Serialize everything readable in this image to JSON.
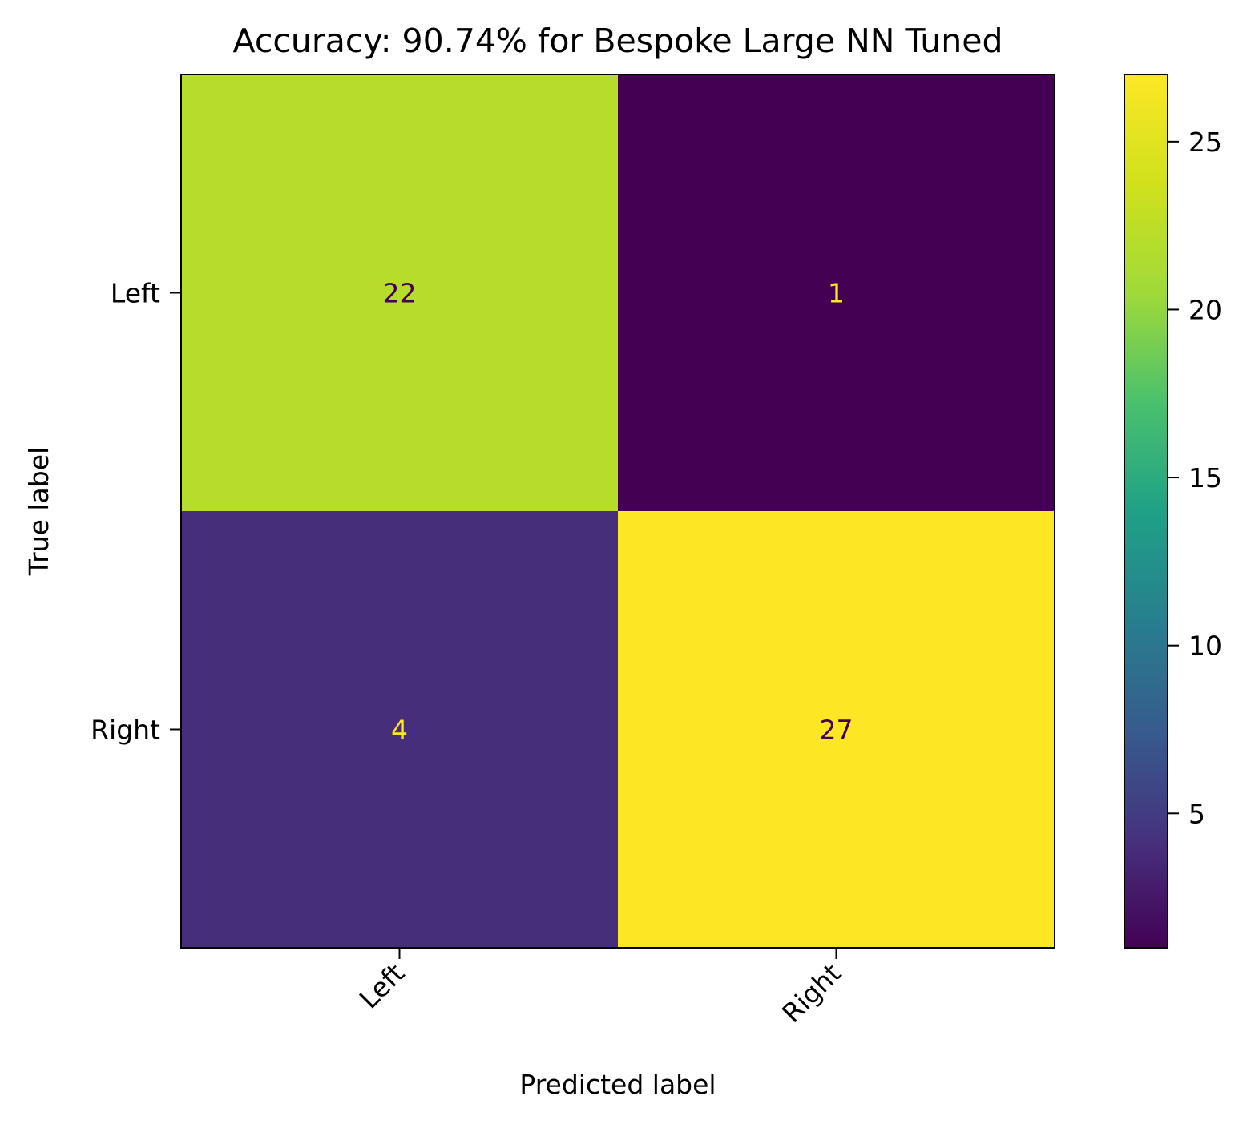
{
  "chart_data": {
    "type": "heatmap",
    "title": "Accuracy: 90.74% for Bespoke Large NN Tuned",
    "xlabel": "Predicted label",
    "ylabel": "True label",
    "x_categories": [
      "Left",
      "Right"
    ],
    "y_categories": [
      "Left",
      "Right"
    ],
    "values": [
      [
        22,
        1
      ],
      [
        4,
        27
      ]
    ],
    "value_labels": [
      [
        "22",
        "1"
      ],
      [
        "4",
        "27"
      ]
    ],
    "colormap": "viridis",
    "colorbar": {
      "range": [
        1,
        27
      ],
      "ticks": [
        5,
        10,
        15,
        20,
        25
      ],
      "tick_labels": [
        "5",
        "10",
        "15",
        "20",
        "25"
      ]
    },
    "grid": false
  }
}
